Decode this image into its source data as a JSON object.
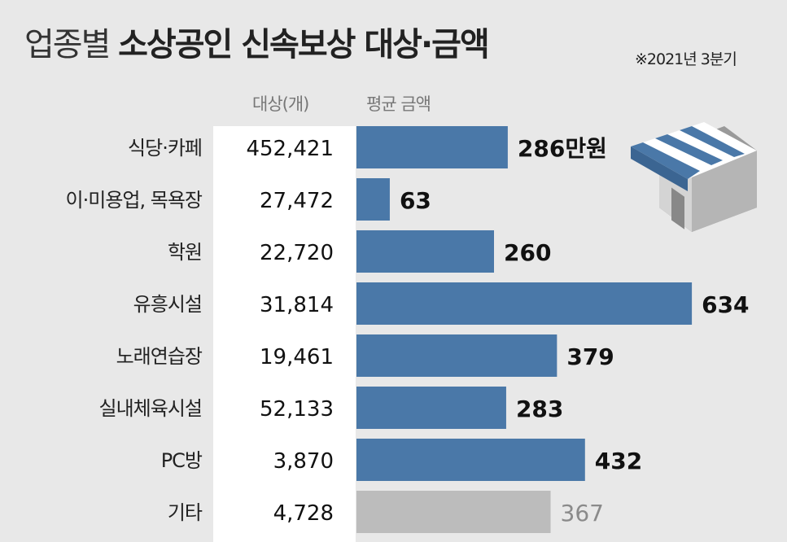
{
  "title": {
    "light": "업종별",
    "bold": "소상공인 신속보상 대상·금액"
  },
  "note": "※2021년 3분기",
  "columns": {
    "count": "대상(개)",
    "amount": "평균 금액"
  },
  "unit_suffix": "만원",
  "colors": {
    "bar": "#4a78a8",
    "bar_other": "#bcbcbc",
    "background": "#e8e8e8",
    "count_column": "#ffffff"
  },
  "store_icon": "store-awning-icon",
  "chart_data": {
    "type": "bar",
    "orientation": "horizontal",
    "categories": [
      "식당·카페",
      "이·미용업, 목욕장",
      "학원",
      "유흥시설",
      "노래연습장",
      "실내체육시설",
      "PC방",
      "기타"
    ],
    "counts": [
      "452,421",
      "27,472",
      "22,720",
      "31,814",
      "19,461",
      "52,133",
      "3,870",
      "4,728"
    ],
    "values": [
      286,
      63,
      260,
      634,
      379,
      283,
      432,
      367
    ],
    "value_labels": [
      "286만원",
      "63",
      "260",
      "634",
      "379",
      "283",
      "432",
      "367"
    ],
    "highlight_last_gray": true
  }
}
